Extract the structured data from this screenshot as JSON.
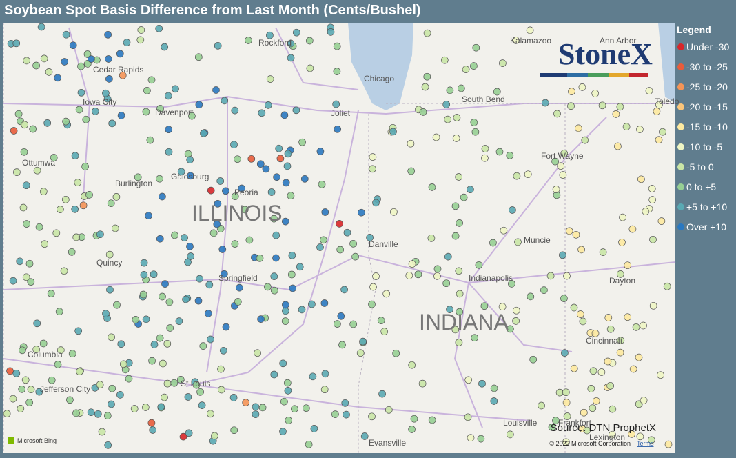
{
  "title": "Soybean Spot Basis Difference from Last Month (Cents/Bushel)",
  "legend": {
    "title": "Legend",
    "items": [
      {
        "label": "Under -30",
        "color": "#d7262a"
      },
      {
        "label": "-30 to -25",
        "color": "#e85c3b"
      },
      {
        "label": "-25 to -20",
        "color": "#f49457"
      },
      {
        "label": "-20 to -15",
        "color": "#fbc57a"
      },
      {
        "label": "-15 to -10",
        "color": "#fde9a0"
      },
      {
        "label": "-10 to -5",
        "color": "#eef5c4"
      },
      {
        "label": "-5 to 0",
        "color": "#c9e5a6"
      },
      {
        "label": "0 to +5",
        "color": "#97cf94"
      },
      {
        "label": "+5 to +10",
        "color": "#5aa9b3"
      },
      {
        "label": "Over +10",
        "color": "#2a78c0"
      }
    ]
  },
  "logo": "StoneX",
  "places": [
    "Cedar Rapids",
    "Iowa City",
    "Davenport",
    "Ottumwa",
    "Burlington",
    "Galesburg",
    "Peoria",
    "ILLINOIS",
    "Quincy",
    "Springfield",
    "Columbia",
    "Jefferson City",
    "St Louis",
    "Rockford",
    "Chicago",
    "Joliet",
    "South Bend",
    "Kalamazoo",
    "Ann Arbor",
    "Toledo",
    "Fort Wayne",
    "Danville",
    "Muncie",
    "Indianapolis",
    "INDIANA",
    "Dayton",
    "Cincinnati",
    "Louisville",
    "Evansville",
    "Frankfort",
    "Lexington"
  ],
  "source": "Source: DTN ProphetX",
  "copyright": "© 2022 Microsoft Corporation",
  "terms": "Terms",
  "bing": "Microsoft Bing"
}
